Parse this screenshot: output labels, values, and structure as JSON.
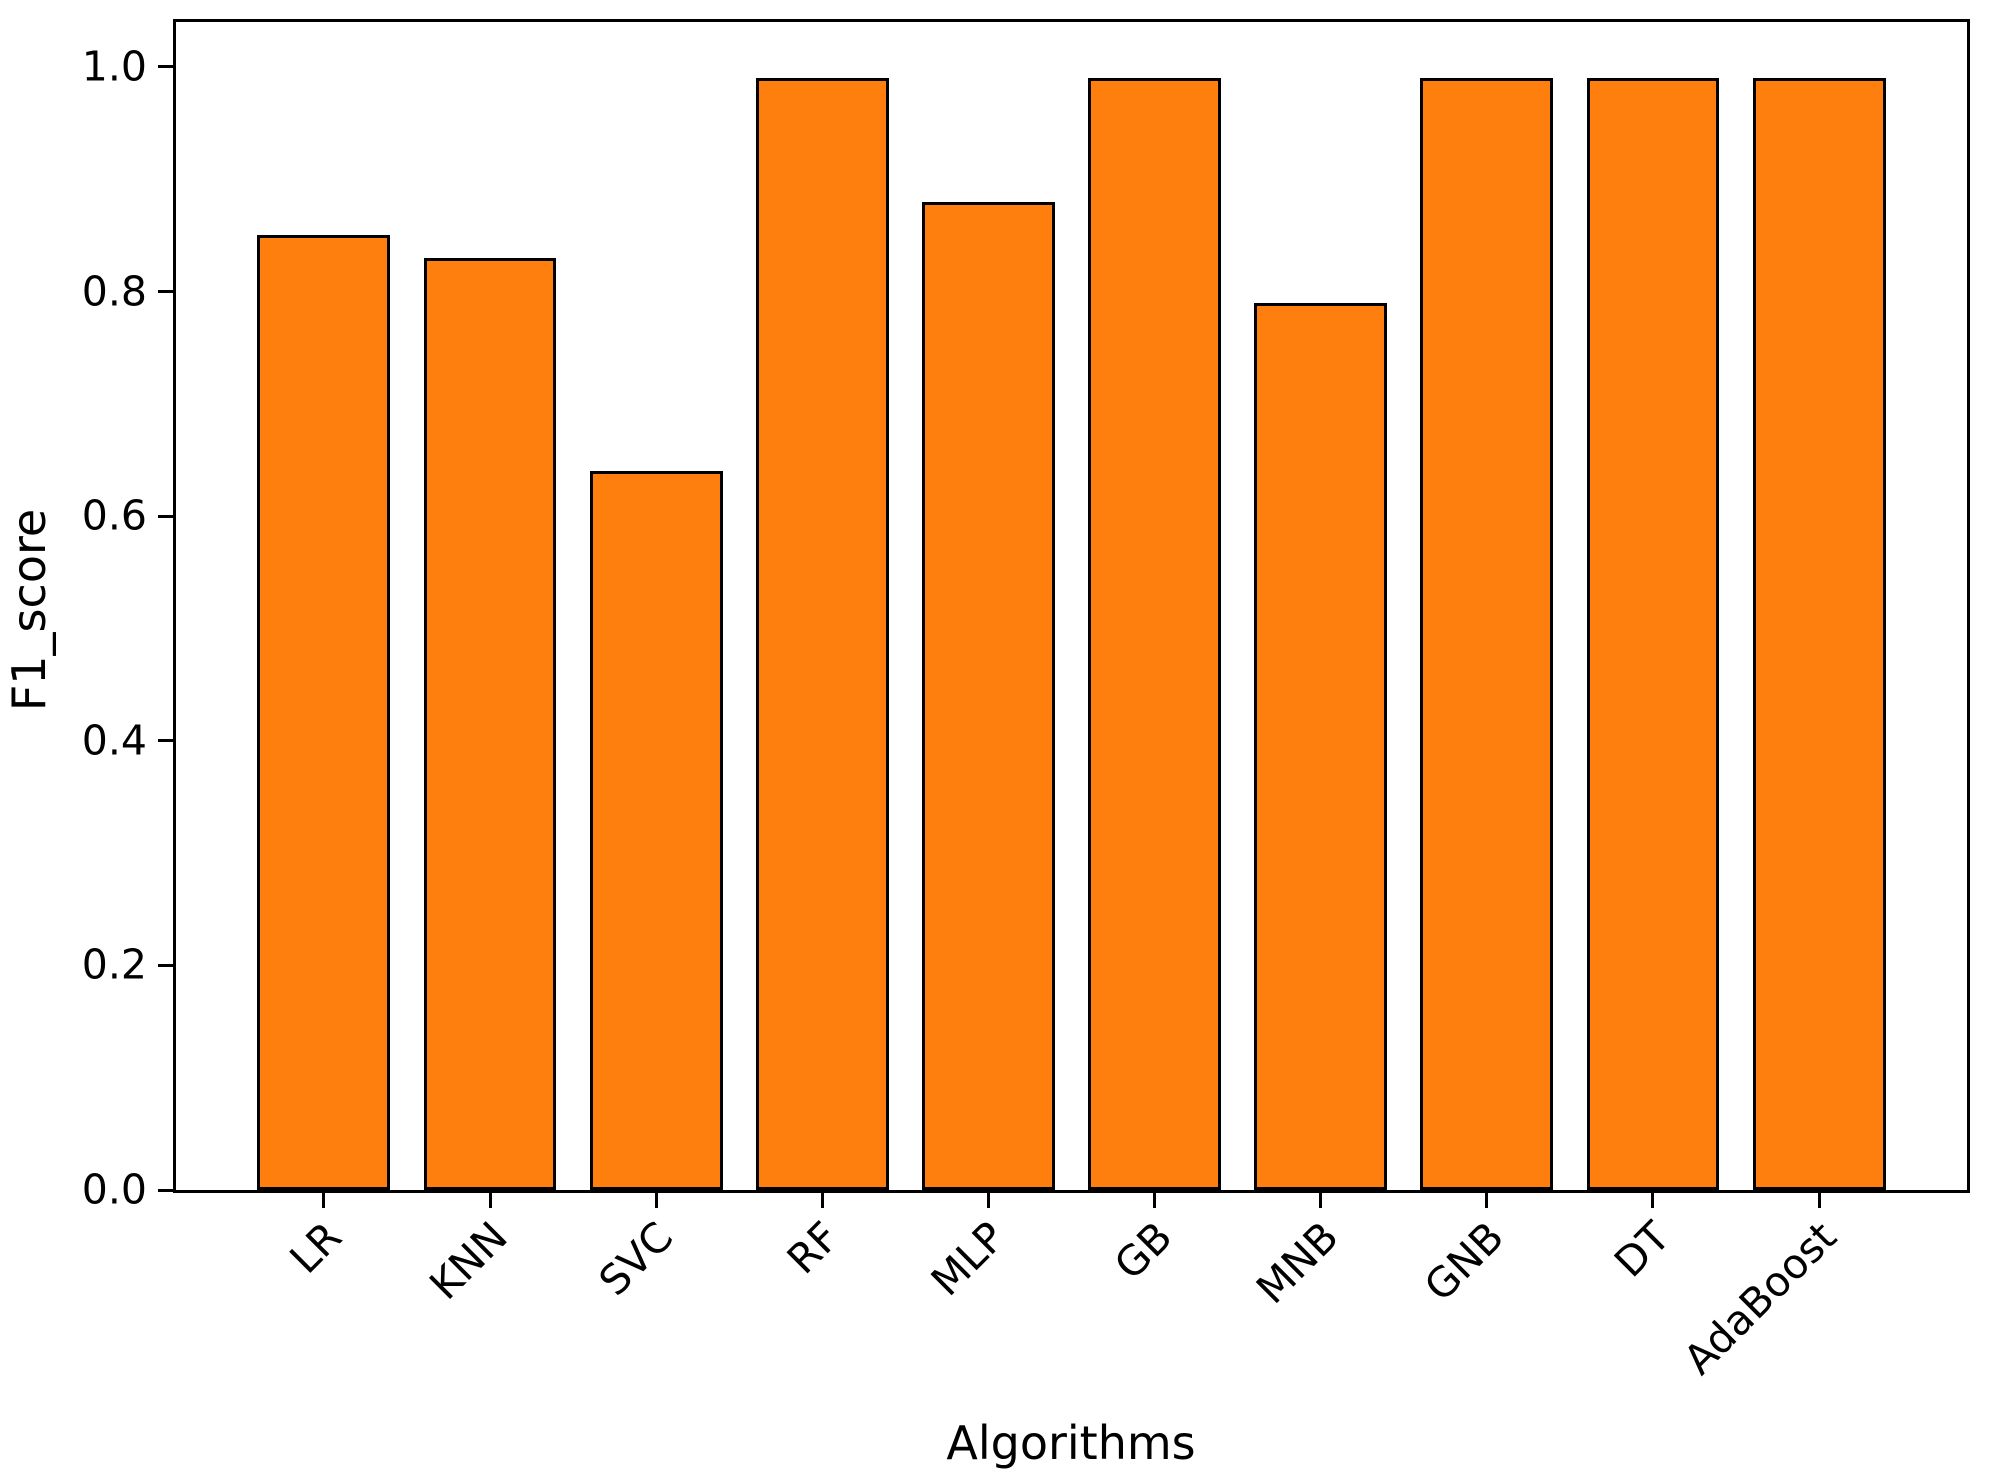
{
  "figure": {
    "background_color": "#ffffff",
    "text_color": "#000000"
  },
  "chart_data": {
    "type": "bar",
    "title": "",
    "xlabel": "Algorithms",
    "ylabel": "F1_score",
    "categories": [
      "LR",
      "KNN",
      "SVC",
      "RF",
      "MLP",
      "GB",
      "MNB",
      "GNB",
      "DT",
      "AdaBoost"
    ],
    "values": [
      0.85,
      0.83,
      0.64,
      0.99,
      0.88,
      0.99,
      0.79,
      0.99,
      0.99,
      0.99
    ],
    "ytick_labels": [
      "0.0",
      "0.2",
      "0.4",
      "0.6",
      "0.8",
      "1.0"
    ],
    "ytick_values": [
      0.0,
      0.2,
      0.4,
      0.6,
      0.8,
      1.0
    ],
    "ylim": [
      0,
      1.04
    ],
    "xlim_units": [
      -0.89,
      9.89
    ],
    "bar_width_units": 0.8,
    "bar_color": "#ff7f0e",
    "bar_edge_color": "#000000",
    "x_tick_rotation_deg": 45,
    "grid": false,
    "legend_shown": false,
    "spines": "full-box"
  }
}
